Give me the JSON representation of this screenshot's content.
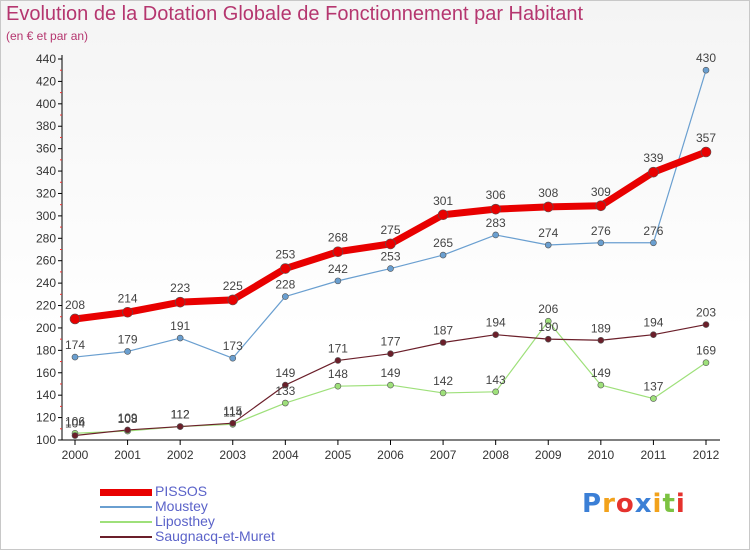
{
  "chart_data": {
    "type": "line",
    "title": "Evolution de la Dotation Globale de Fonctionnement par Habitant",
    "subtitle": "(en € et par an)",
    "x": [
      "2000",
      "2001",
      "2002",
      "2003",
      "2004",
      "2005",
      "2006",
      "2007",
      "2008",
      "2009",
      "2010",
      "2011",
      "2012"
    ],
    "ylim": [
      100,
      440
    ],
    "yticks": [
      100,
      120,
      140,
      160,
      180,
      200,
      220,
      240,
      260,
      280,
      300,
      320,
      340,
      360,
      380,
      400,
      420,
      440
    ],
    "grid": false,
    "legend_position": "bottom-left",
    "series": [
      {
        "name": "PISSOS",
        "color": "#e80000",
        "values": [
          208,
          214,
          223,
          225,
          253,
          268,
          275,
          301,
          306,
          308,
          309,
          339,
          357
        ]
      },
      {
        "name": "Moustey",
        "color": "#6a9fd0",
        "values": [
          174,
          179,
          191,
          173,
          228,
          242,
          253,
          265,
          283,
          274,
          276,
          276,
          430
        ]
      },
      {
        "name": "Liposthey",
        "color": "#9ee07a",
        "values": [
          106,
          108,
          112,
          114,
          133,
          148,
          149,
          142,
          143,
          206,
          149,
          137,
          169
        ]
      },
      {
        "name": "Saugnacq-et-Muret",
        "color": "#6b1f2a",
        "values": [
          104,
          109,
          112,
          115,
          149,
          171,
          177,
          187,
          194,
          190,
          189,
          194,
          203
        ]
      }
    ]
  },
  "logo": {
    "letters": [
      {
        "ch": "P",
        "color": "#3b7fd6"
      },
      {
        "ch": "r",
        "color": "#f2a21b"
      },
      {
        "ch": "o",
        "color": "#e5322d"
      },
      {
        "ch": "x",
        "color": "#3b7fd6"
      },
      {
        "ch": "i",
        "color": "#f2a21b"
      },
      {
        "ch": "t",
        "color": "#7cc242"
      },
      {
        "ch": "i",
        "color": "#e5322d"
      }
    ]
  }
}
